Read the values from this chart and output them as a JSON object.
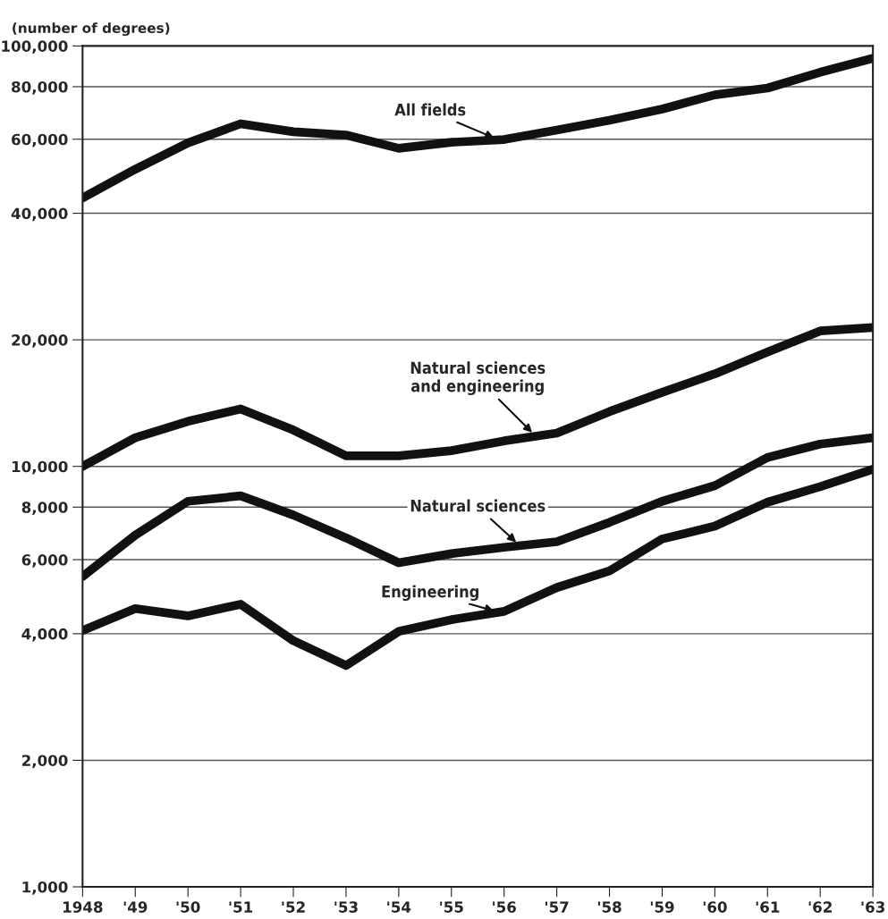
{
  "chart_data": {
    "type": "line",
    "ylabel": "(number of degrees)",
    "log": "y",
    "grid": "y",
    "legend": false,
    "marker": "none",
    "line_style": "solid",
    "x": [
      1948,
      1949,
      1950,
      1951,
      1952,
      1953,
      1954,
      1955,
      1956,
      1957,
      1958,
      1959,
      1960,
      1961,
      1962,
      1963
    ],
    "xlim": [
      1948,
      1963
    ],
    "xticks": [
      {
        "value": 1948,
        "label": "1948"
      },
      {
        "value": 1949,
        "label": "'49"
      },
      {
        "value": 1950,
        "label": "'50"
      },
      {
        "value": 1951,
        "label": "'51"
      },
      {
        "value": 1952,
        "label": "'52"
      },
      {
        "value": 1953,
        "label": "'53"
      },
      {
        "value": 1954,
        "label": "'54"
      },
      {
        "value": 1955,
        "label": "'55"
      },
      {
        "value": 1956,
        "label": "'56"
      },
      {
        "value": 1957,
        "label": "'57"
      },
      {
        "value": 1958,
        "label": "'58"
      },
      {
        "value": 1959,
        "label": "'59"
      },
      {
        "value": 1960,
        "label": "'60"
      },
      {
        "value": 1961,
        "label": "'61"
      },
      {
        "value": 1962,
        "label": "'62"
      },
      {
        "value": 1963,
        "label": "'63"
      }
    ],
    "ylim": [
      1000,
      100000
    ],
    "yticks": [
      {
        "value": 1000,
        "label": "1,000"
      },
      {
        "value": 2000,
        "label": "2,000"
      },
      {
        "value": 4000,
        "label": "4,000"
      },
      {
        "value": 6000,
        "label": "6,000"
      },
      {
        "value": 8000,
        "label": "8,000"
      },
      {
        "value": 10000,
        "label": "10,000"
      },
      {
        "value": 20000,
        "label": "20,000"
      },
      {
        "value": 40000,
        "label": "40,000"
      },
      {
        "value": 60000,
        "label": "60,000"
      },
      {
        "value": 80000,
        "label": "80,000"
      },
      {
        "value": 100000,
        "label": "100,000"
      }
    ],
    "series": [
      {
        "name": "All fields",
        "color": "#111111",
        "values": [
          43500,
          50900,
          58800,
          65300,
          62500,
          61400,
          57100,
          59000,
          59900,
          63100,
          66600,
          70800,
          76500,
          79400,
          86600,
          93500
        ]
      },
      {
        "name": "Natural sciences\nand engineering",
        "color": "#111111",
        "values": [
          10000,
          11700,
          12800,
          13700,
          12200,
          10600,
          10600,
          10900,
          11500,
          12000,
          13500,
          15000,
          16600,
          18700,
          21000,
          21400
        ]
      },
      {
        "name": "Natural sciences",
        "color": "#111111",
        "values": [
          5470,
          6860,
          8260,
          8510,
          7660,
          6760,
          5900,
          6200,
          6420,
          6620,
          7360,
          8260,
          9000,
          10500,
          11300,
          11700
        ]
      },
      {
        "name": "Engineering",
        "color": "#111111",
        "values": [
          4070,
          4590,
          4410,
          4700,
          3850,
          3360,
          4050,
          4320,
          4520,
          5150,
          5640,
          6720,
          7210,
          8220,
          8950,
          9850
        ]
      }
    ]
  }
}
